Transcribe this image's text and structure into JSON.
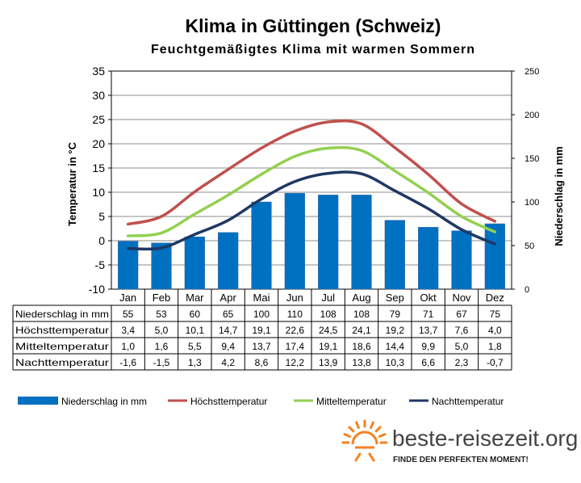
{
  "chart_data": {
    "type": "bar+line",
    "title": "Klima in Güttingen (Schweiz)",
    "subtitle": "Feuchtgemäßigtes Klima mit warmen Sommern",
    "ylabel_left": "Temperatur in °C",
    "ylabel_right": "Niederschlag in mm",
    "ylim_left": [
      -10,
      35
    ],
    "yticks_left": [
      "35",
      "30",
      "25",
      "20",
      "15",
      "10",
      "5",
      "0",
      "-5",
      "-10"
    ],
    "ylim_right": [
      0,
      250
    ],
    "yticks_right": [
      "250",
      "200",
      "150",
      "100",
      "50",
      "0"
    ],
    "grid": true,
    "legend_position": "bottom",
    "categories": [
      "Jan",
      "Feb",
      "Mar",
      "Apr",
      "Mai",
      "Jun",
      "Jul",
      "Aug",
      "Sep",
      "Okt",
      "Nov",
      "Dez"
    ],
    "series": [
      {
        "name": "Niederschlag in mm",
        "kind": "bar",
        "axis": "right",
        "color": "#0070C0",
        "values": [
          55,
          53,
          60,
          65,
          100,
          110,
          108,
          108,
          79,
          71,
          67,
          75
        ],
        "labels": [
          "55",
          "53",
          "60",
          "65",
          "100",
          "110",
          "108",
          "108",
          "79",
          "71",
          "67",
          "75"
        ]
      },
      {
        "name": "Höchsttemperatur",
        "kind": "line",
        "axis": "left",
        "color": "#C0504D",
        "values": [
          3.4,
          5.0,
          10.1,
          14.7,
          19.1,
          22.6,
          24.5,
          24.1,
          19.2,
          13.7,
          7.6,
          4.0
        ],
        "labels": [
          "3,4",
          "5,0",
          "10,1",
          "14,7",
          "19,1",
          "22,6",
          "24,5",
          "24,1",
          "19,2",
          "13,7",
          "7,6",
          "4,0"
        ]
      },
      {
        "name": "Mitteltemperatur",
        "kind": "line",
        "axis": "left",
        "color": "#92D050",
        "values": [
          1.0,
          1.6,
          5.5,
          9.4,
          13.7,
          17.4,
          19.1,
          18.6,
          14.4,
          9.9,
          5.0,
          1.8
        ],
        "labels": [
          "1,0",
          "1,6",
          "5,5",
          "9,4",
          "13,7",
          "17,4",
          "19,1",
          "18,6",
          "14,4",
          "9,9",
          "5,0",
          "1,8"
        ]
      },
      {
        "name": "Nachttemperatur",
        "kind": "line",
        "axis": "left",
        "color": "#1F3864",
        "values": [
          -1.6,
          -1.5,
          1.3,
          4.2,
          8.6,
          12.2,
          13.9,
          13.8,
          10.3,
          6.6,
          2.3,
          -0.7
        ],
        "labels": [
          "-1,6",
          "-1,5",
          "1,3",
          "4,2",
          "8,6",
          "12,2",
          "13,9",
          "13,8",
          "10,3",
          "6,6",
          "2,3",
          "-0,7"
        ]
      }
    ]
  },
  "brand": {
    "name": "beste-reisezeit.org",
    "slogan": "FINDE DEN PERFEKTEN MOMENT!",
    "logo_icon": "sun-icon",
    "logo_color": "#F58220"
  }
}
